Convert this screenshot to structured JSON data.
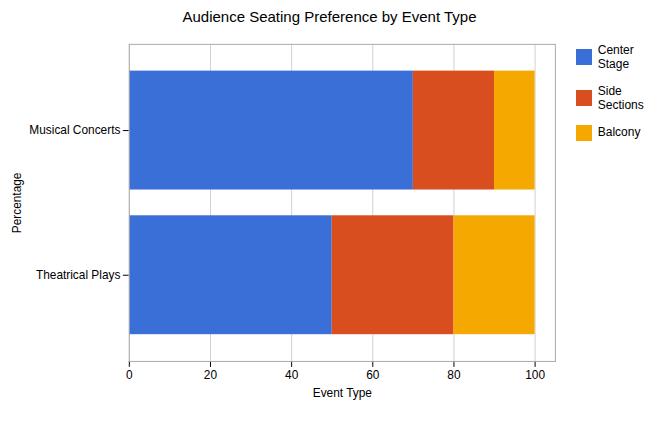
{
  "chart_data": {
    "type": "bar",
    "orientation": "horizontal",
    "stacked": true,
    "title": "Audience Seating Preference by Event Type",
    "xlabel": "Event Type",
    "ylabel": "Percentage",
    "categories": [
      "Theatrical Plays",
      "Musical Concerts"
    ],
    "series": [
      {
        "name": "Center Stage",
        "color": "#3A6FD8",
        "values": [
          50,
          70
        ]
      },
      {
        "name": "Side Sections",
        "color": "#D94E1F",
        "values": [
          30,
          20
        ]
      },
      {
        "name": "Balcony",
        "color": "#F5A800",
        "values": [
          20,
          10
        ]
      }
    ],
    "xlim": [
      0,
      105
    ],
    "xticks": [
      0,
      20,
      40,
      60,
      80,
      100
    ],
    "grid": true,
    "legend": "right"
  }
}
